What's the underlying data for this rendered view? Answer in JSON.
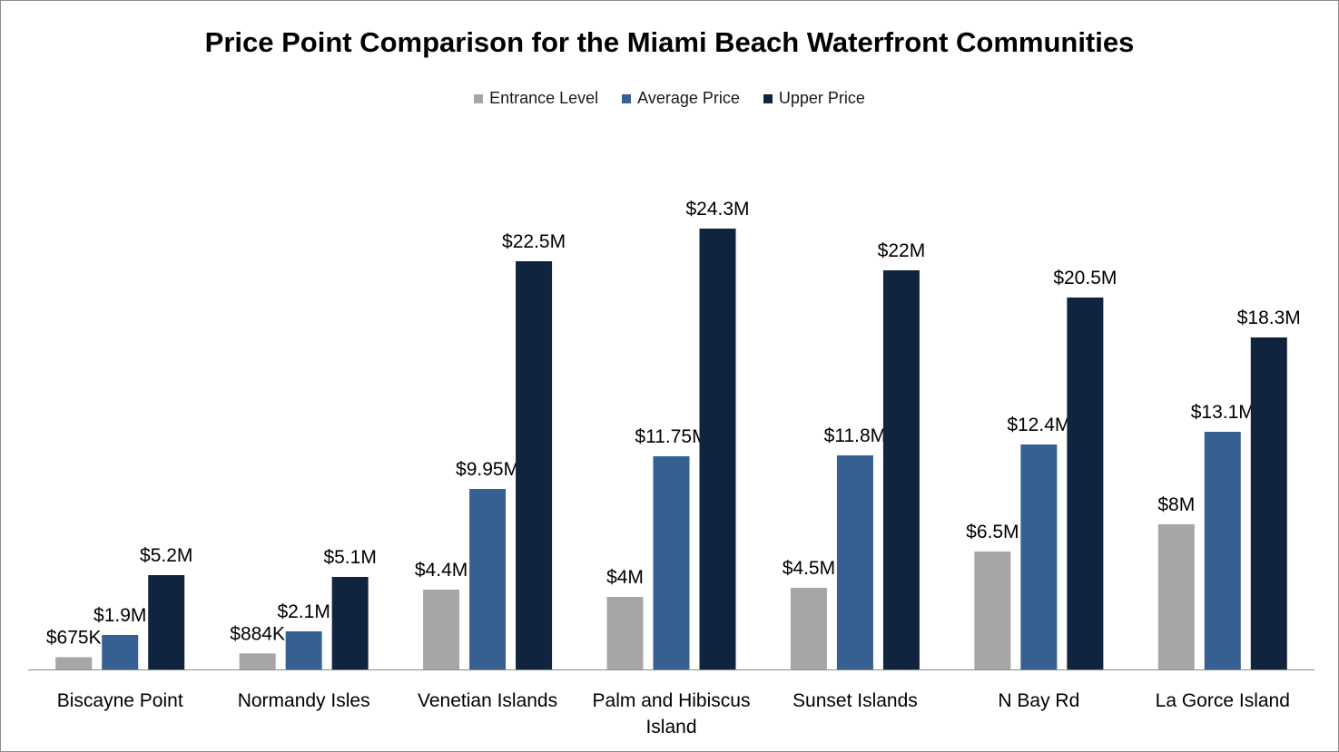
{
  "chart_data": {
    "type": "bar",
    "title": "Price Point Comparison for the Miami Beach Waterfront Communities",
    "xlabel": "",
    "ylabel": "",
    "ylim": [
      0,
      27
    ],
    "grid": false,
    "legend_position": "top",
    "categories": [
      [
        "Biscayne Point"
      ],
      [
        "Normandy Isles"
      ],
      [
        "Venetian Islands"
      ],
      [
        "Palm and Hibiscus",
        "Island"
      ],
      [
        "Sunset Islands"
      ],
      [
        "N Bay Rd"
      ],
      [
        "La Gorce Island"
      ]
    ],
    "series": [
      {
        "name": "Entrance Level",
        "color": "#a6a6a6",
        "values": [
          0.675,
          0.884,
          4.4,
          4.0,
          4.5,
          6.5,
          8.0
        ],
        "labels": [
          "$675K",
          "$884K",
          "$4.4M",
          "$4M",
          "$4.5M",
          "$6.5M",
          "$8M"
        ]
      },
      {
        "name": "Average Price",
        "color": "#376092",
        "values": [
          1.9,
          2.1,
          9.95,
          11.75,
          11.8,
          12.4,
          13.1
        ],
        "labels": [
          "$1.9M",
          "$2.1M",
          "$9.95M",
          "$11.75M",
          "$11.8M",
          "$12.4M",
          "$13.1M"
        ]
      },
      {
        "name": "Upper Price",
        "color": "#10243f",
        "values": [
          5.2,
          5.1,
          22.5,
          24.3,
          22.0,
          20.5,
          18.3
        ],
        "labels": [
          "$5.2M",
          "$5.1M",
          "$22.5M",
          "$24.3M",
          "$22M",
          "$20.5M",
          "$18.3M"
        ]
      }
    ]
  }
}
